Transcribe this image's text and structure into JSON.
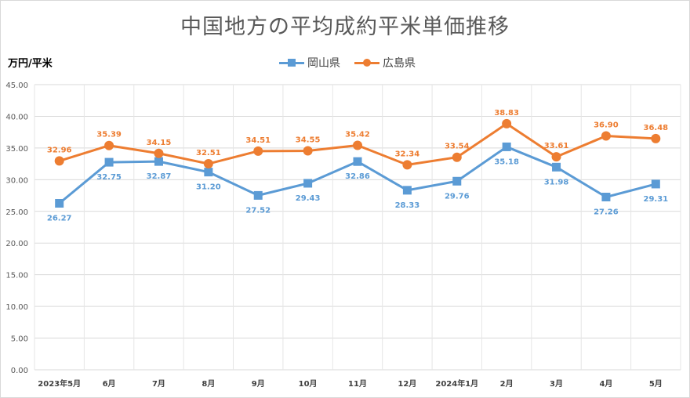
{
  "chart_data": {
    "type": "line",
    "title": "中国地方の平均成約平米単価推移",
    "ylabel": "万円/平米",
    "xlabel": "",
    "categories": [
      "2023年5月",
      "6月",
      "7月",
      "8月",
      "9月",
      "10月",
      "11月",
      "12月",
      "2024年1月",
      "2月",
      "3月",
      "4月",
      "5月"
    ],
    "ylim": [
      0,
      45
    ],
    "yticks": [
      "0.00",
      "5.00",
      "10.00",
      "15.00",
      "20.00",
      "25.00",
      "30.00",
      "35.00",
      "40.00",
      "45.00"
    ],
    "grid": true,
    "legend_position": "top",
    "series": [
      {
        "name": "岡山県",
        "color": "#5b9bd5",
        "marker": "square",
        "values": [
          26.27,
          32.75,
          32.87,
          31.2,
          27.52,
          29.43,
          32.86,
          28.33,
          29.76,
          35.18,
          31.98,
          27.26,
          29.31
        ],
        "labels": [
          "26.27",
          "32.75",
          "32.87",
          "31.20",
          "27.52",
          "29.43",
          "32.86",
          "28.33",
          "29.76",
          "35.18",
          "31.98",
          "27.26",
          "29.31"
        ],
        "label_position": "below"
      },
      {
        "name": "広島県",
        "color": "#ed7d31",
        "marker": "circle",
        "values": [
          32.96,
          35.39,
          34.15,
          32.51,
          34.51,
          34.55,
          35.42,
          32.34,
          33.54,
          38.83,
          33.61,
          36.9,
          36.48
        ],
        "labels": [
          "32.96",
          "35.39",
          "34.15",
          "32.51",
          "34.51",
          "34.55",
          "35.42",
          "32.34",
          "33.54",
          "38.83",
          "33.61",
          "36.90",
          "36.48"
        ],
        "label_position": "above"
      }
    ]
  }
}
